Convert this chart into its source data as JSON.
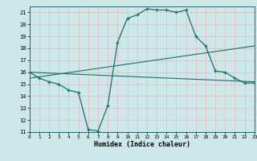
{
  "xlabel": "Humidex (Indice chaleur)",
  "bg_color": "#cce8e8",
  "grid_color": "#e8b8b8",
  "line_color": "#1a6e6e",
  "ylim": [
    11,
    21.5
  ],
  "xlim": [
    0,
    23
  ],
  "yticks": [
    11,
    12,
    13,
    14,
    15,
    16,
    17,
    18,
    19,
    20,
    21
  ],
  "xticks": [
    0,
    1,
    2,
    3,
    4,
    5,
    6,
    7,
    8,
    9,
    10,
    11,
    12,
    13,
    14,
    15,
    16,
    17,
    18,
    19,
    20,
    21,
    22,
    23
  ],
  "line1_x": [
    0,
    1,
    2,
    3,
    4,
    5,
    6,
    7,
    8,
    9,
    10,
    11,
    12,
    13,
    14,
    15,
    16,
    17,
    18,
    19,
    20,
    21,
    22,
    23
  ],
  "line1_y": [
    16.0,
    15.5,
    15.2,
    15.0,
    14.5,
    14.3,
    11.2,
    11.1,
    13.2,
    18.5,
    20.5,
    20.8,
    21.3,
    21.2,
    21.2,
    21.0,
    21.2,
    19.0,
    18.2,
    16.1,
    16.0,
    15.5,
    15.1,
    15.1
  ],
  "line2_x": [
    0,
    23
  ],
  "line2_y": [
    15.5,
    18.2
  ],
  "line3_x": [
    0,
    23
  ],
  "line3_y": [
    16.0,
    15.2
  ]
}
